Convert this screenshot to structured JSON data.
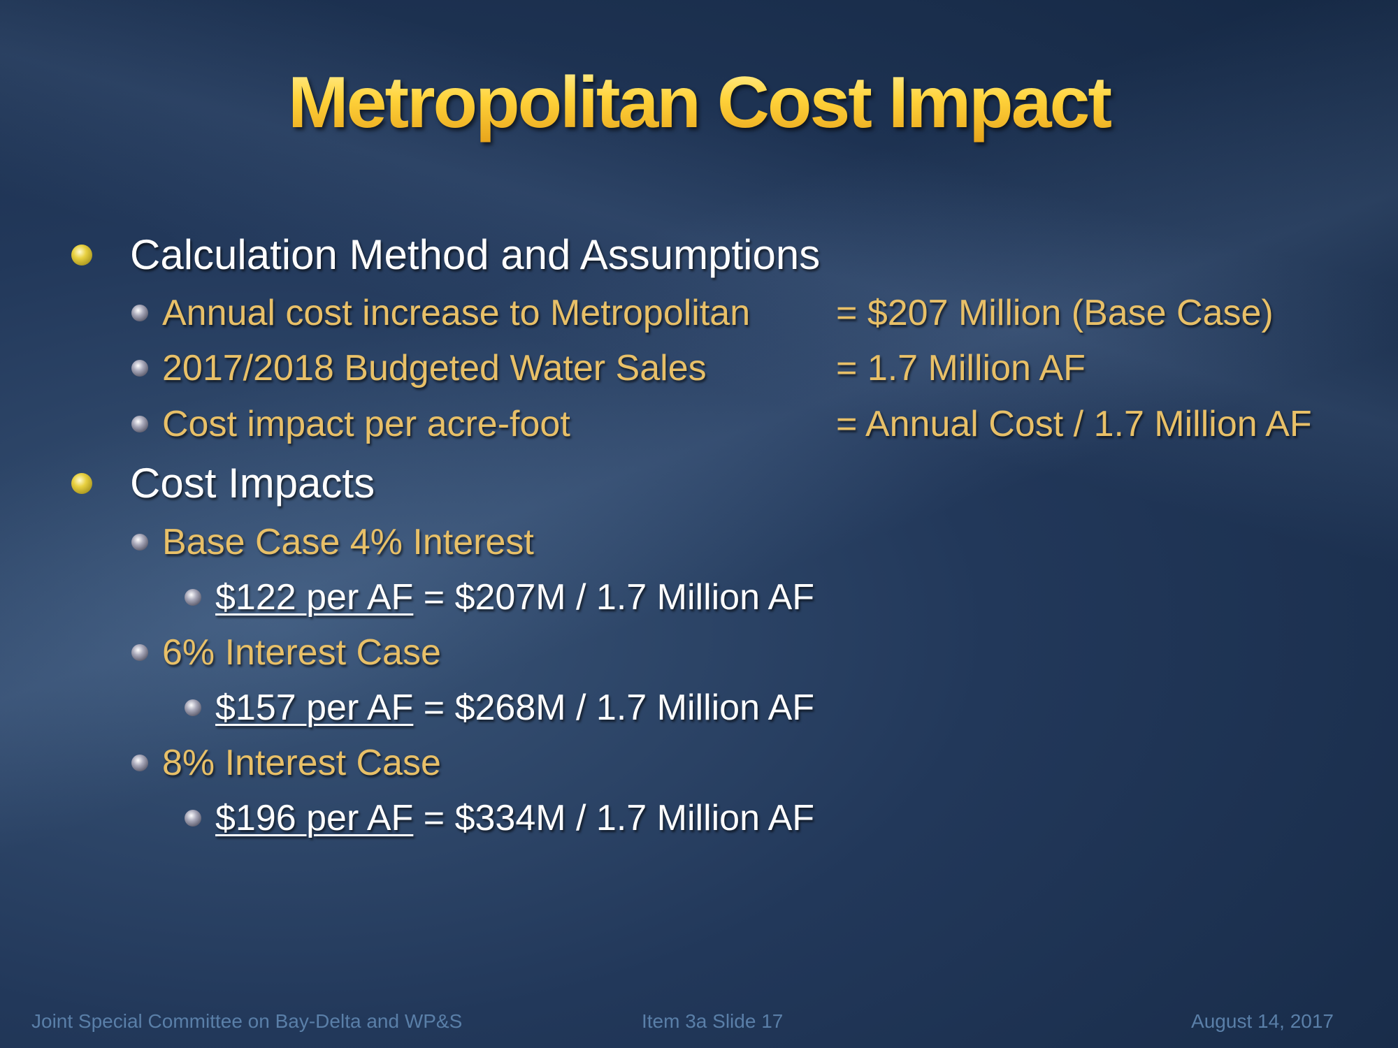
{
  "title": "Metropolitan Cost Impact",
  "sections": [
    {
      "label": "Calculation Method and Assumptions",
      "items": [
        {
          "label": "Annual cost increase to Metropolitan",
          "value": "= $207 Million (Base Case)"
        },
        {
          "label": "2017/2018 Budgeted Water Sales",
          "value": "= 1.7 Million AF"
        },
        {
          "label": "Cost impact per acre-foot",
          "value": "= Annual Cost / 1.7 Million AF"
        }
      ]
    },
    {
      "label": "Cost Impacts",
      "items": [
        {
          "label": "Base Case 4% Interest",
          "detail_underlined": "$122 per AF",
          "detail_rest": " = $207M / 1.7 Million AF"
        },
        {
          "label": "6% Interest Case",
          "detail_underlined": "$157 per AF",
          "detail_rest": " = $268M / 1.7 Million AF"
        },
        {
          "label": "8% Interest Case",
          "detail_underlined": "$196 per AF",
          "detail_rest": " = $334M / 1.7 Million AF"
        }
      ]
    }
  ],
  "footer": {
    "left": "Joint Special Committee on Bay-Delta and WP&S",
    "center": "Item 3a  Slide 17",
    "right": "August 14, 2017"
  }
}
